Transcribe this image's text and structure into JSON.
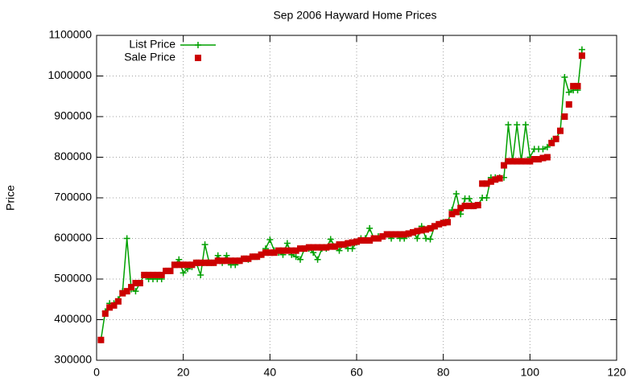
{
  "chart_data": {
    "type": "line",
    "title": "Sep 2006 Hayward Home Prices",
    "y_label": "Price",
    "x": [
      1,
      2,
      3,
      4,
      5,
      6,
      7,
      8,
      9,
      10,
      11,
      12,
      13,
      14,
      15,
      16,
      17,
      18,
      19,
      20,
      21,
      22,
      23,
      24,
      25,
      26,
      27,
      28,
      29,
      30,
      31,
      32,
      33,
      34,
      35,
      36,
      37,
      38,
      39,
      40,
      41,
      42,
      43,
      44,
      45,
      46,
      47,
      48,
      49,
      50,
      51,
      52,
      53,
      54,
      55,
      56,
      57,
      58,
      59,
      60,
      61,
      62,
      63,
      64,
      65,
      66,
      67,
      68,
      69,
      70,
      71,
      72,
      73,
      74,
      75,
      76,
      77,
      78,
      79,
      80,
      81,
      82,
      83,
      84,
      85,
      86,
      87,
      88,
      89,
      90,
      91,
      92,
      93,
      94,
      95,
      96,
      97,
      98,
      99,
      100,
      101,
      102,
      103,
      104,
      105,
      106,
      107,
      108,
      109,
      110,
      111,
      112
    ],
    "series": [
      {
        "name": "List Price",
        "color": "#00a000",
        "style": "linespoints",
        "values": [
          350000,
          420000,
          440000,
          440000,
          450000,
          470000,
          600000,
          475000,
          470000,
          490000,
          510000,
          500000,
          500000,
          500000,
          500000,
          520000,
          520000,
          535000,
          548000,
          515000,
          525000,
          530000,
          540000,
          510000,
          585000,
          540000,
          540000,
          558000,
          540000,
          558000,
          535000,
          535000,
          545000,
          550000,
          548000,
          555000,
          555000,
          560000,
          575000,
          597000,
          570000,
          565000,
          560000,
          588000,
          560000,
          555000,
          548000,
          575000,
          575000,
          565000,
          548000,
          575000,
          575000,
          598000,
          580000,
          570000,
          585000,
          575000,
          575000,
          590000,
          600000,
          600000,
          625000,
          600000,
          605000,
          605000,
          610000,
          600000,
          610000,
          600000,
          600000,
          610000,
          615000,
          600000,
          630000,
          600000,
          598000,
          630000,
          635000,
          640000,
          640000,
          670000,
          710000,
          660000,
          698000,
          698000,
          680000,
          682000,
          700000,
          700000,
          750000,
          750000,
          750000,
          750000,
          880000,
          790000,
          880000,
          790000,
          880000,
          800000,
          820000,
          820000,
          820000,
          825000,
          840000,
          845000,
          865000,
          997000,
          960000,
          965000,
          965000,
          1065000
        ]
      },
      {
        "name": "Sale Price",
        "color": "#cc0000",
        "style": "points",
        "values": [
          350000,
          415000,
          430000,
          435000,
          445000,
          465000,
          470000,
          480000,
          490000,
          490000,
          510000,
          510000,
          510000,
          510000,
          510000,
          520000,
          520000,
          535000,
          535000,
          535000,
          535000,
          535000,
          540000,
          540000,
          540000,
          540000,
          540000,
          545000,
          545000,
          545000,
          545000,
          545000,
          545000,
          550000,
          550000,
          555000,
          555000,
          560000,
          565000,
          565000,
          565000,
          570000,
          570000,
          570000,
          570000,
          570000,
          575000,
          575000,
          578000,
          578000,
          578000,
          578000,
          578000,
          580000,
          580000,
          585000,
          585000,
          588000,
          590000,
          592000,
          595000,
          595000,
          595000,
          600000,
          600000,
          605000,
          610000,
          610000,
          610000,
          610000,
          610000,
          612000,
          615000,
          618000,
          620000,
          622000,
          625000,
          630000,
          635000,
          638000,
          640000,
          660000,
          665000,
          675000,
          680000,
          680000,
          680000,
          682000,
          735000,
          735000,
          740000,
          745000,
          748000,
          780000,
          790000,
          790000,
          790000,
          790000,
          790000,
          790000,
          795000,
          795000,
          798000,
          800000,
          835000,
          845000,
          865000,
          900000,
          930000,
          975000,
          975000,
          1050000
        ]
      }
    ],
    "xlim": [
      0,
      120
    ],
    "xticks": [
      0,
      20,
      40,
      60,
      80,
      100,
      120
    ],
    "ylim": [
      300000,
      1100000
    ],
    "yticks": [
      300000,
      400000,
      500000,
      600000,
      700000,
      800000,
      900000,
      1000000,
      1100000
    ],
    "grid": true,
    "legend": "top-left"
  }
}
